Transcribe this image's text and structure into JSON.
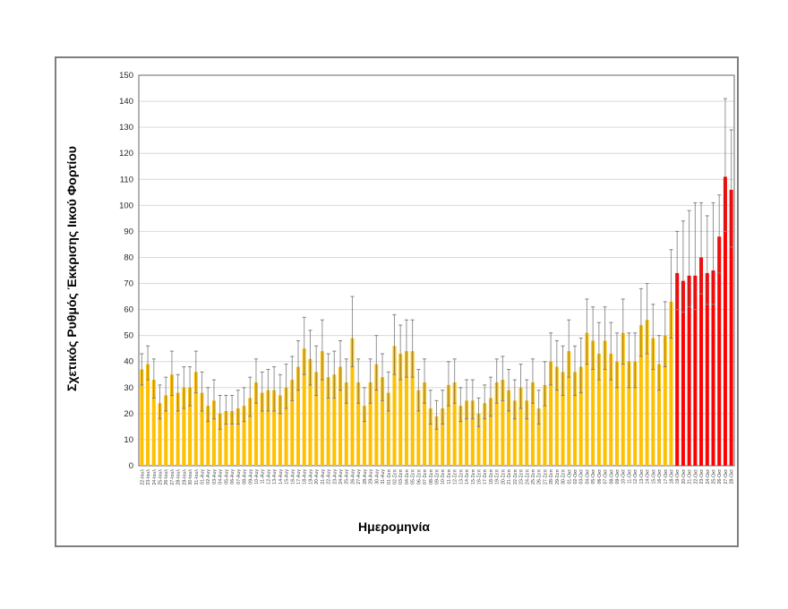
{
  "figure": {
    "y_axis_title": "Σχετικός Ρυθμός Έκκρισης Ιικού Φορτίου",
    "x_axis_title": "Ημερομηνία"
  },
  "colors": {
    "bar_default": "#FFC000",
    "bar_highlight": "#FF0000",
    "error_bar": "#808080",
    "gridline": "#D9D9D9",
    "plot_border": "#808080",
    "tick_text": "#262626",
    "x_label_text": "#404040"
  },
  "chart_data": {
    "type": "bar",
    "title": "",
    "ylabel": "Σχετικός Ρυθμός Έκκρισης Ιικού Φορτίου",
    "xlabel": "Ημερομηνία",
    "ylim": [
      0,
      150
    ],
    "y_tick_step": 10,
    "grid": true,
    "legend": false,
    "error_bars": true,
    "red_start_index": 89,
    "categories": [
      "22-Ιουλ",
      "23-Ιουλ",
      "24-Ιουλ",
      "25-Ιουλ",
      "26-Ιουλ",
      "27-Ιουλ",
      "28-Ιουλ",
      "29-Ιουλ",
      "30-Ιουλ",
      "31-Ιουλ",
      "01-Αυγ",
      "02-Αυγ",
      "03-Αυγ",
      "04-Αυγ",
      "05-Αυγ",
      "06-Αυγ",
      "07-Αυγ",
      "08-Αυγ",
      "09-Αυγ",
      "10-Αυγ",
      "11-Αυγ",
      "12-Αυγ",
      "13-Αυγ",
      "14-Αυγ",
      "15-Αυγ",
      "16-Αυγ",
      "17-Αυγ",
      "18-Αυγ",
      "19-Αυγ",
      "20-Αυγ",
      "21-Αυγ",
      "22-Αυγ",
      "23-Αυγ",
      "24-Αυγ",
      "25-Αυγ",
      "26-Αυγ",
      "27-Αυγ",
      "28-Αυγ",
      "29-Αυγ",
      "30-Αυγ",
      "31-Αυγ",
      "01-Σεπ",
      "02-Σεπ",
      "03-Σεπ",
      "04-Σεπ",
      "05-Σεπ",
      "06-Σεπ",
      "07-Σεπ",
      "08-Σεπ",
      "09-Σεπ",
      "10-Σεπ",
      "11-Σεπ",
      "12-Σεπ",
      "13-Σεπ",
      "14-Σεπ",
      "15-Σεπ",
      "16-Σεπ",
      "17-Σεπ",
      "18-Σεπ",
      "19-Σεπ",
      "20-Σεπ",
      "21-Σεπ",
      "22-Σεπ",
      "23-Σεπ",
      "24-Σεπ",
      "25-Σεπ",
      "26-Σεπ",
      "27-Σεπ",
      "28-Σεπ",
      "29-Σεπ",
      "30-Σεπ",
      "01-Οκτ",
      "02-Οκτ",
      "03-Οκτ",
      "04-Οκτ",
      "05-Οκτ",
      "06-Οκτ",
      "07-Οκτ",
      "08-Οκτ",
      "09-Οκτ",
      "10-Οκτ",
      "11-Οκτ",
      "12-Οκτ",
      "13-Οκτ",
      "14-Οκτ",
      "15-Οκτ",
      "16-Οκτ",
      "17-Οκτ",
      "18-Οκτ",
      "19-Οκτ",
      "20-Οκτ",
      "21-Οκτ",
      "22-Οκτ",
      "23-Οκτ",
      "24-Οκτ",
      "25-Οκτ",
      "26-Οκτ",
      "27-Οκτ",
      "28-Οκτ"
    ],
    "values": [
      37,
      39,
      33,
      24,
      27,
      35,
      28,
      30,
      30,
      36,
      28,
      23,
      25,
      20,
      21,
      21,
      22,
      23,
      26,
      32,
      28,
      29,
      29,
      27,
      30,
      33,
      38,
      45,
      41,
      36,
      44,
      34,
      35,
      38,
      32,
      49,
      32,
      23,
      32,
      39,
      34,
      28,
      46,
      43,
      44,
      44,
      29,
      32,
      22,
      19,
      22,
      31,
      32,
      23,
      25,
      25,
      20,
      24,
      26,
      32,
      33,
      29,
      25,
      30,
      25,
      32,
      22,
      31,
      40,
      38,
      36,
      44,
      36,
      38,
      51,
      48,
      43,
      48,
      43,
      40,
      51,
      40,
      40,
      54,
      56,
      49,
      39,
      50,
      63,
      74,
      71,
      73,
      73,
      80,
      74,
      75,
      88,
      111,
      106
    ],
    "err_up": [
      6,
      7,
      8,
      7,
      7,
      9,
      7,
      8,
      8,
      8,
      8,
      7,
      8,
      7,
      6,
      6,
      7,
      7,
      8,
      9,
      8,
      8,
      9,
      8,
      9,
      9,
      10,
      12,
      11,
      10,
      12,
      9,
      9,
      10,
      9,
      16,
      9,
      7,
      9,
      11,
      9,
      8,
      12,
      11,
      12,
      12,
      8,
      9,
      7,
      6,
      7,
      9,
      9,
      7,
      8,
      8,
      6,
      7,
      8,
      9,
      9,
      8,
      8,
      9,
      8,
      9,
      7,
      9,
      11,
      10,
      10,
      12,
      10,
      11,
      13,
      13,
      12,
      13,
      12,
      11,
      13,
      11,
      11,
      14,
      14,
      13,
      11,
      13,
      20,
      16,
      23,
      25,
      28,
      21,
      22,
      26,
      16,
      30,
      23
    ],
    "err_down": [
      6,
      6,
      7,
      6,
      6,
      8,
      7,
      8,
      7,
      8,
      7,
      6,
      7,
      6,
      5,
      5,
      6,
      6,
      7,
      8,
      7,
      8,
      8,
      7,
      8,
      8,
      9,
      10,
      10,
      9,
      11,
      8,
      9,
      9,
      8,
      11,
      8,
      6,
      8,
      10,
      9,
      7,
      11,
      10,
      10,
      10,
      8,
      8,
      6,
      5,
      6,
      8,
      8,
      6,
      7,
      7,
      5,
      6,
      7,
      8,
      8,
      8,
      7,
      8,
      7,
      8,
      6,
      8,
      9,
      9,
      9,
      10,
      9,
      10,
      12,
      11,
      10,
      11,
      10,
      10,
      12,
      10,
      10,
      12,
      13,
      12,
      10,
      12,
      14,
      14,
      12,
      12,
      13,
      14,
      12,
      13,
      14,
      21,
      22
    ]
  }
}
